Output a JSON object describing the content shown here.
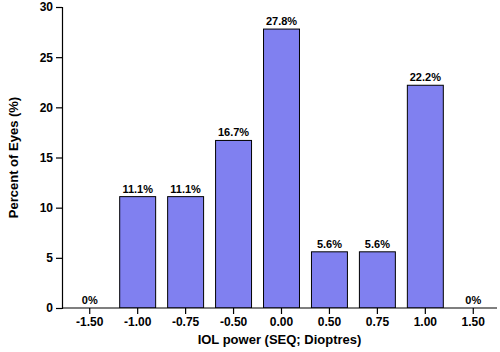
{
  "chart_data": {
    "type": "bar",
    "x_label": "IOL power (SEQ; Dioptres)",
    "y_label": "Percent of Eyes (%)",
    "categories": [
      "-1.50",
      "-1.00",
      "-0.75",
      "-0.50",
      "0.00",
      "0.50",
      "0.75",
      "1.00",
      "1.50"
    ],
    "values": [
      0,
      11.1,
      11.1,
      16.7,
      27.8,
      5.6,
      5.6,
      22.2,
      0
    ],
    "value_labels": [
      "0%",
      "11.1%",
      "11.1%",
      "16.7%",
      "27.8%",
      "5.6%",
      "5.6%",
      "22.2%",
      "0%"
    ],
    "data_labels": true,
    "color": "#8080f0",
    "ylim": [
      0,
      30
    ],
    "yticks": [
      0,
      5,
      10,
      15,
      20,
      25,
      30
    ],
    "grid": false
  }
}
